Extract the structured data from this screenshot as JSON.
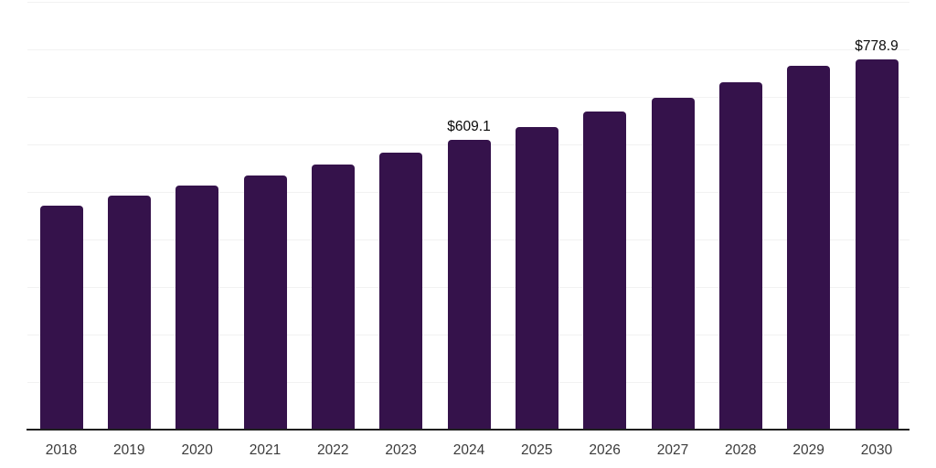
{
  "chart_data": {
    "type": "bar",
    "title": "",
    "xlabel": "",
    "ylabel": "",
    "categories": [
      "2018",
      "2019",
      "2020",
      "2021",
      "2022",
      "2023",
      "2024",
      "2025",
      "2026",
      "2027",
      "2028",
      "2029",
      "2030"
    ],
    "values": [
      471,
      492,
      513,
      535,
      558,
      582,
      609.1,
      637,
      669,
      698,
      731,
      765,
      778.9
    ],
    "data_labels": [
      "",
      "",
      "",
      "",
      "",
      "",
      "$609.1",
      "",
      "",
      "",
      "",
      "",
      "$778.9"
    ],
    "labeled_values": {
      "2024": "$609.1",
      "2030": "$778.9"
    },
    "ylim": [
      0,
      900
    ],
    "gridline_interval": 100,
    "grid": "horizontal",
    "y_tick_labels_shown": false,
    "legend": "none",
    "colors": {
      "bar": "#35124B",
      "gridline": "#f2f2f2",
      "axis_line": "#1f1f1f",
      "tick_label": "#3b3b3b",
      "value_label": "#0a0a0a",
      "background": "#ffffff"
    }
  }
}
